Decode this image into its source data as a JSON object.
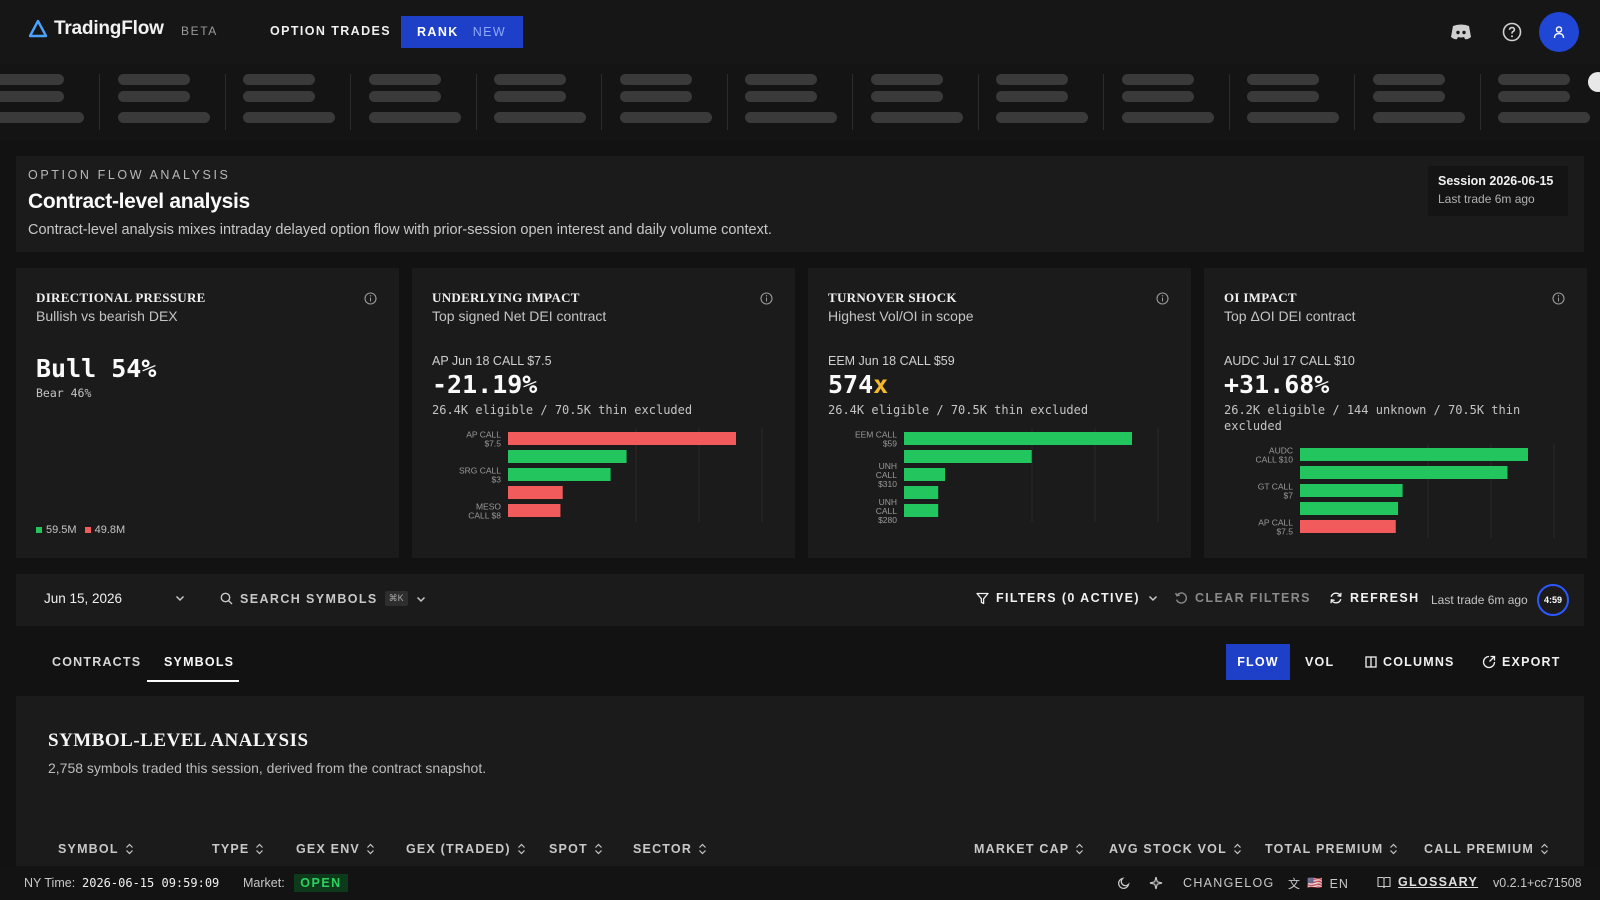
{
  "brand": {
    "name": "TradingFlow",
    "badge": "BETA"
  },
  "nav": {
    "option_trades": "OPTION TRADES",
    "rank": "RANK",
    "rank_badge": "NEW",
    "icons": [
      "discord-icon",
      "help-icon",
      "user-icon"
    ]
  },
  "header": {
    "eyebrow": "OPTION FLOW ANALYSIS",
    "title": "Contract-level analysis",
    "description": "Contract-level analysis mixes intraday delayed option flow with prior-session open interest and daily volume context.",
    "session": "Session 2026-06-15",
    "last_trade": "Last trade 6m ago"
  },
  "cards": [
    {
      "title": "DIRECTIONAL PRESSURE",
      "subtitle": "Bullish vs bearish DEX",
      "big": "Bull 54%",
      "note": "Bear 46%",
      "legend_bull": "59.5M",
      "legend_bear": "49.8M",
      "bull_fraction": 0.54
    },
    {
      "title": "UNDERLYING IMPACT",
      "subtitle": "Top signed Net DEI contract",
      "label": "AP Jun 18 CALL $7.5",
      "big": "-21.19%",
      "note": "26.4K eligible / 70.5K thin excluded",
      "chart_labels": [
        [
          "AP CALL",
          "$7.5"
        ],
        [
          "",
          ""
        ],
        [
          "SRG CALL",
          "$3"
        ],
        [
          "",
          ""
        ],
        [
          "MESO",
          "CALL $8"
        ]
      ],
      "chart_values": [
        1.0,
        0.52,
        0.45,
        0.24,
        0.23
      ],
      "chart_colors": [
        "#f25b5b",
        "#22c55e",
        "#22c55e",
        "#f25b5b",
        "#f25b5b"
      ]
    },
    {
      "title": "TURNOVER SHOCK",
      "subtitle": "Highest Vol/OI in scope",
      "label": "EEM Jun 18 CALL $59",
      "big": "574",
      "big_suffix": "x",
      "note": "26.4K eligible / 70.5K thin excluded",
      "chart_labels": [
        [
          "EEM CALL",
          "$59"
        ],
        [
          "",
          ""
        ],
        [
          "UNH",
          "CALL",
          "$310"
        ],
        [
          "",
          ""
        ],
        [
          "UNH",
          "CALL",
          "$280"
        ]
      ],
      "chart_values": [
        1.0,
        0.56,
        0.18,
        0.15,
        0.15
      ],
      "chart_colors": [
        "#22c55e",
        "#22c55e",
        "#22c55e",
        "#22c55e",
        "#22c55e"
      ]
    },
    {
      "title": "OI IMPACT",
      "subtitle": "Top ΔOI DEI contract",
      "label": "AUDC Jul 17 CALL $10",
      "big": "+31.68%",
      "note": "26.2K eligible / 144 unknown / 70.5K thin excluded",
      "chart_labels": [
        [
          "AUDC",
          "CALL $10"
        ],
        [
          "",
          ""
        ],
        [
          "GT CALL",
          "$7"
        ],
        [
          "",
          ""
        ],
        [
          "AP CALL",
          "$7.5"
        ]
      ],
      "chart_values": [
        1.0,
        0.91,
        0.45,
        0.43,
        0.42
      ],
      "chart_colors": [
        "#22c55e",
        "#22c55e",
        "#22c55e",
        "#22c55e",
        "#f25b5b"
      ]
    }
  ],
  "filters": {
    "date": "Jun 15, 2026",
    "search": "SEARCH SYMBOLS",
    "search_kbd": "⌘K",
    "filters": "FILTERS (0 ACTIVE)",
    "clear": "CLEAR FILTERS",
    "refresh": "REFRESH",
    "last_trade": "Last trade 6m ago",
    "countdown": "4:59"
  },
  "tabs": {
    "contracts": "CONTRACTS",
    "symbols": "SYMBOLS",
    "active": "SYMBOLS"
  },
  "view": {
    "flow": "FLOW",
    "vol": "VOL",
    "columns": "COLUMNS",
    "export": "EXPORT"
  },
  "table": {
    "title": "SYMBOL-LEVEL ANALYSIS",
    "description": "2,758 symbols traded this session, derived from the contract snapshot.",
    "columns": [
      "SYMBOL",
      "TYPE",
      "GEX ENV",
      "GEX (TRADED)",
      "SPOT",
      "SECTOR",
      "MARKET CAP",
      "AVG STOCK VOL",
      "TOTAL PREMIUM",
      "CALL PREMIUM"
    ]
  },
  "footer": {
    "ny_label": "NY Time:",
    "ny_time": "2026-06-15 09:59:09",
    "market_label": "Market:",
    "market_status": "OPEN",
    "changelog": "CHANGELOG",
    "lang": "EN",
    "flag": "🇺🇸",
    "glossary": "GLOSSARY",
    "version": "v0.2.1+cc71508"
  },
  "colors": {
    "accent": "#1e40c8",
    "bull": "#22c55e",
    "bear": "#f25b5b",
    "ring": "#2c58ff"
  }
}
